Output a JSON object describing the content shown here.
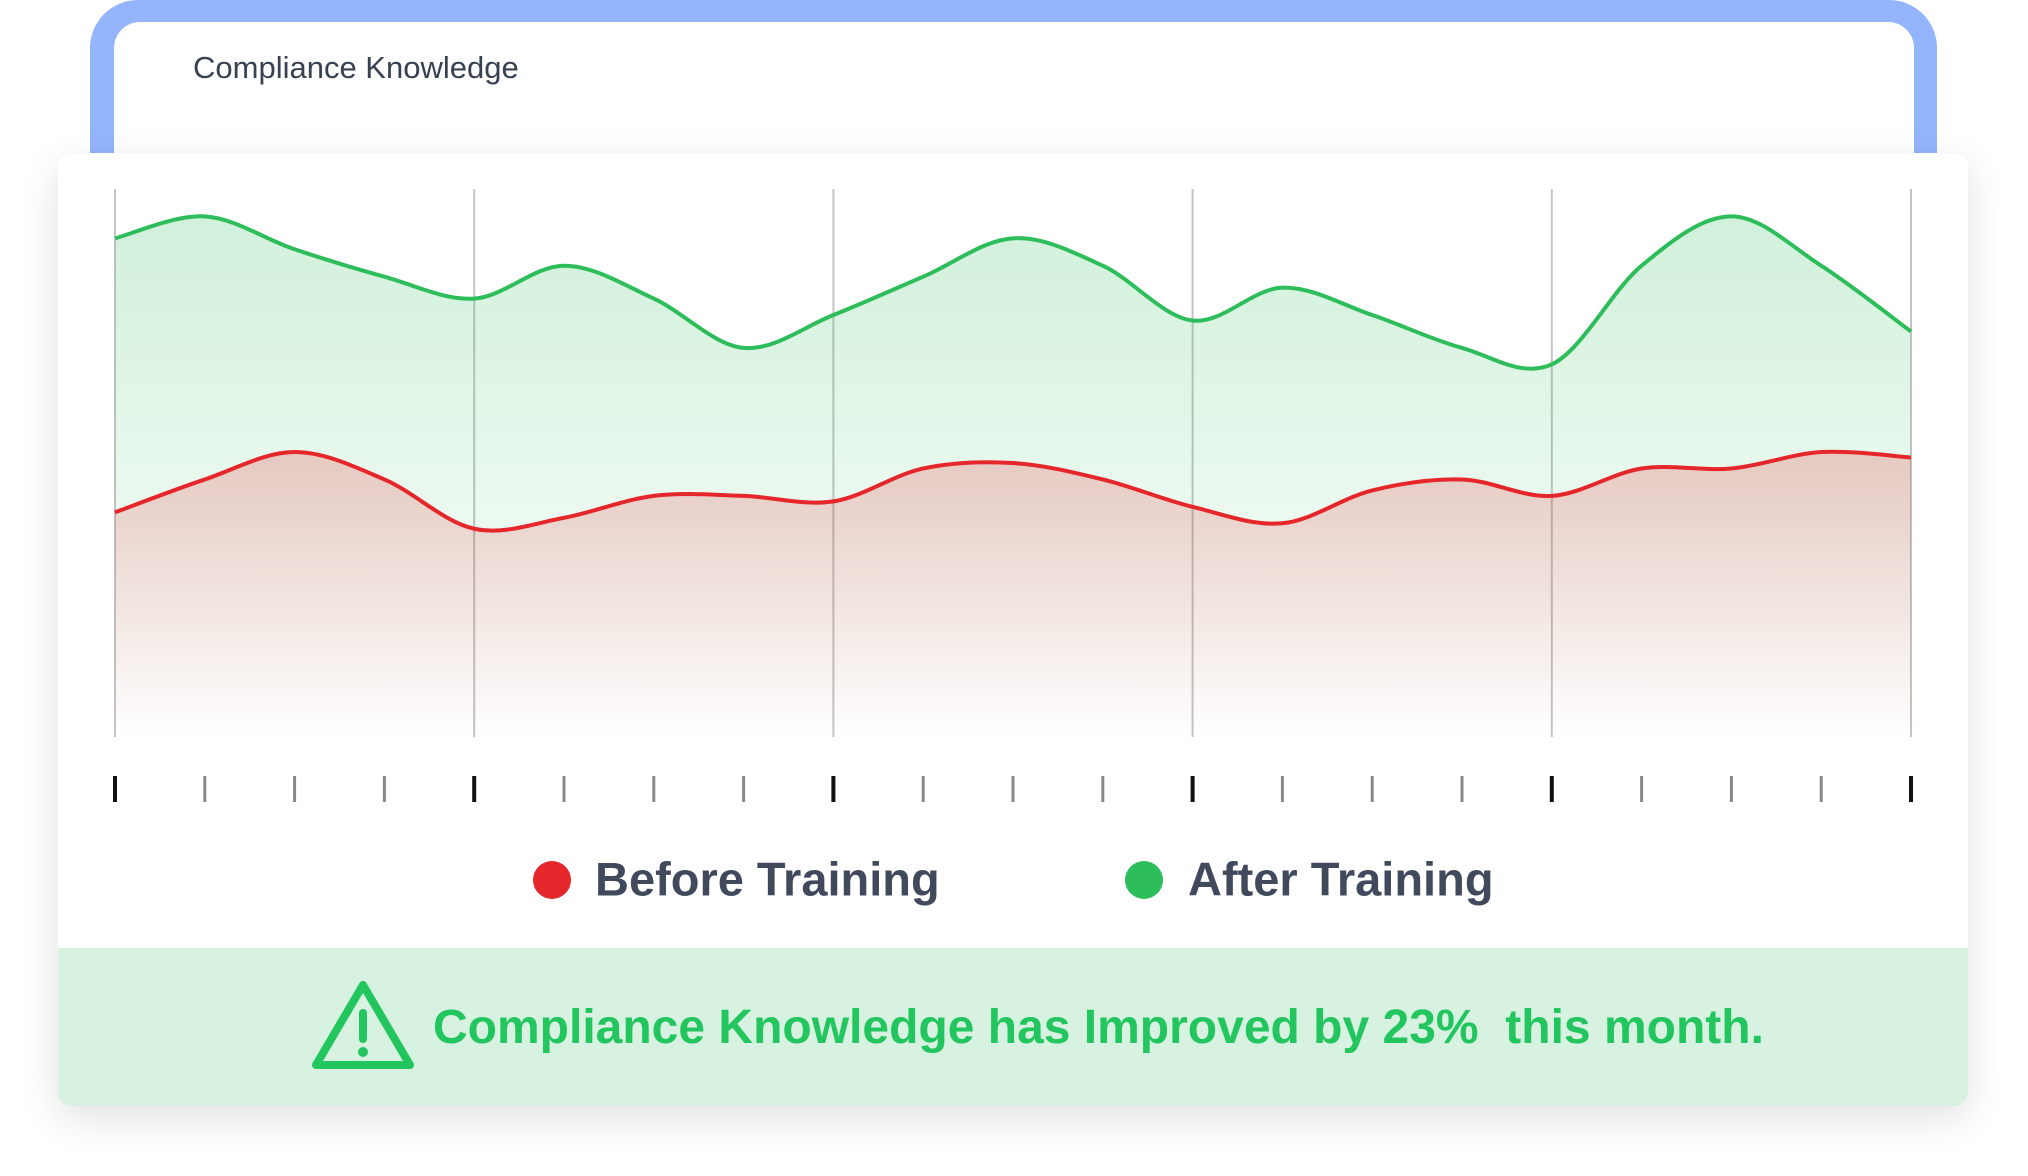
{
  "header": {
    "title": "Compliance Knowledge"
  },
  "chart_data": {
    "type": "area",
    "categories": [
      null,
      null,
      null,
      null,
      null,
      null,
      null,
      null,
      null,
      null,
      null,
      null,
      null,
      null,
      null,
      null,
      null,
      null,
      null,
      null,
      null
    ],
    "ylim": [
      0,
      100
    ],
    "series": [
      {
        "name": "Before Training",
        "color": "#e5262b",
        "values": [
          41,
          47,
          52,
          47,
          38,
          40,
          44,
          44,
          43,
          49,
          50,
          47,
          42,
          39,
          45,
          47,
          44,
          49,
          49,
          52,
          51
        ]
      },
      {
        "name": "After Training",
        "color": "#2dbd5a",
        "values": [
          91,
          95,
          89,
          84,
          80,
          86,
          80,
          71,
          77,
          84,
          91,
          86,
          76,
          82,
          77,
          71,
          68,
          86,
          95,
          86,
          74
        ]
      }
    ],
    "annotation": "Compliance Knowledge has Improved by 23%  this month."
  }
}
